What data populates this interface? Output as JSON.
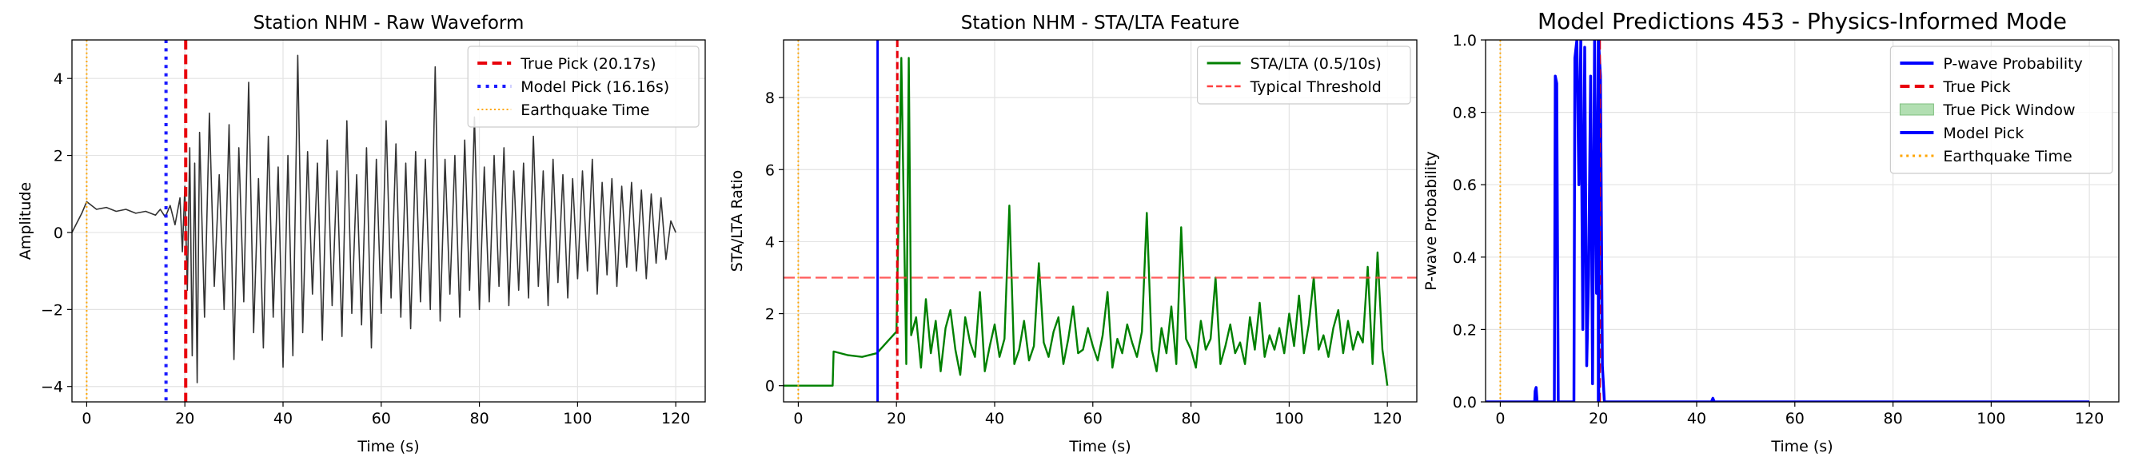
{
  "chart_data": [
    {
      "type": "line",
      "title": "Station NHM - Raw Waveform",
      "xlabel": "Time (s)",
      "ylabel": "Amplitude",
      "xlim": [
        -3,
        126
      ],
      "ylim": [
        -4.4,
        5.0
      ],
      "xticks": [
        0,
        20,
        40,
        60,
        80,
        100,
        120
      ],
      "yticks": [
        -4,
        -2,
        0,
        2,
        4
      ],
      "grid": true,
      "legend_position": "top-right",
      "series": [
        {
          "name": "Waveform",
          "color": "#333333",
          "x": [
            -3,
            -1,
            0,
            2,
            4,
            6,
            8,
            10,
            12,
            14,
            15,
            16,
            17,
            18,
            19,
            19.5,
            20,
            20.5,
            21,
            21.5,
            22,
            22.5,
            23,
            24,
            25,
            26,
            27,
            28,
            29,
            30,
            31,
            32,
            33,
            34,
            35,
            36,
            37,
            38,
            39,
            40,
            41,
            42,
            43,
            44,
            45,
            46,
            47,
            48,
            49,
            50,
            51,
            52,
            53,
            54,
            55,
            56,
            57,
            58,
            59,
            60,
            61,
            62,
            63,
            64,
            65,
            66,
            67,
            68,
            69,
            70,
            71,
            72,
            73,
            74,
            75,
            76,
            77,
            78,
            79,
            80,
            81,
            82,
            83,
            84,
            85,
            86,
            87,
            88,
            89,
            90,
            91,
            92,
            93,
            94,
            95,
            96,
            97,
            98,
            99,
            100,
            101,
            102,
            103,
            104,
            105,
            106,
            107,
            108,
            109,
            110,
            111,
            112,
            113,
            114,
            115,
            116,
            117,
            118,
            119,
            120
          ],
          "values": [
            0.0,
            0.5,
            0.8,
            0.6,
            0.65,
            0.55,
            0.6,
            0.5,
            0.55,
            0.45,
            0.6,
            0.4,
            0.7,
            0.2,
            0.9,
            -0.5,
            1.2,
            -1.5,
            2.2,
            -3.2,
            1.8,
            -3.9,
            2.6,
            -2.2,
            3.1,
            -1.4,
            1.5,
            -2.0,
            2.8,
            -3.3,
            2.2,
            -1.8,
            3.9,
            -2.6,
            1.4,
            -3.0,
            2.5,
            -2.2,
            1.7,
            -3.5,
            2.0,
            -3.2,
            4.6,
            -2.6,
            2.1,
            -1.6,
            1.8,
            -2.8,
            2.4,
            -1.9,
            1.6,
            -2.7,
            2.9,
            -2.1,
            1.5,
            -2.4,
            2.2,
            -3.0,
            1.9,
            -2.1,
            2.9,
            -1.7,
            2.3,
            -2.2,
            1.8,
            -2.5,
            2.1,
            -1.8,
            1.9,
            -2.0,
            4.3,
            -2.3,
            1.9,
            -1.6,
            2.0,
            -2.2,
            2.4,
            -1.5,
            3.0,
            -2.0,
            1.7,
            -1.8,
            2.0,
            -1.4,
            2.2,
            -1.9,
            1.6,
            -1.5,
            1.8,
            -1.7,
            2.5,
            -1.4,
            1.6,
            -1.9,
            1.9,
            -1.3,
            1.5,
            -1.7,
            1.4,
            -1.2,
            1.6,
            -1.0,
            1.9,
            -1.6,
            1.3,
            -1.1,
            1.4,
            -1.4,
            1.2,
            -0.9,
            1.3,
            -1.0,
            1.1,
            -1.2,
            1.0,
            -0.8,
            0.9,
            -0.7,
            0.3,
            0.0
          ]
        }
      ],
      "vlines": [
        {
          "name": "True Pick (20.17s)",
          "x": 20.17,
          "color": "#e8000b",
          "style": "dashed",
          "width": 4
        },
        {
          "name": "Model Pick (16.16s)",
          "x": 16.16,
          "color": "#1a1aff",
          "style": "dotted",
          "width": 4
        },
        {
          "name": "Earthquake Time",
          "x": 0,
          "color": "#ffa500",
          "style": "dotted",
          "width": 2
        }
      ]
    },
    {
      "type": "line",
      "title": "Station NHM - STA/LTA Feature",
      "xlabel": "Time (s)",
      "ylabel": "STA/LTA Ratio",
      "xlim": [
        -3,
        126
      ],
      "ylim": [
        -0.45,
        9.6
      ],
      "xticks": [
        0,
        20,
        40,
        60,
        80,
        100,
        120
      ],
      "yticks": [
        0,
        2,
        4,
        6,
        8
      ],
      "grid": true,
      "legend_position": "top-right",
      "series": [
        {
          "name": "STA/LTA (0.5/10s)",
          "color": "#008000",
          "x": [
            -3,
            7,
            7.2,
            10,
            13,
            16,
            18,
            20,
            21,
            22,
            22.5,
            23,
            24,
            25,
            26,
            27,
            28,
            29,
            30,
            31,
            32,
            33,
            34,
            35,
            36,
            37,
            38,
            39,
            40,
            41,
            42,
            43,
            44,
            45,
            46,
            47,
            48,
            49,
            50,
            51,
            52,
            53,
            54,
            55,
            56,
            57,
            58,
            59,
            60,
            61,
            62,
            63,
            64,
            65,
            66,
            67,
            68,
            69,
            70,
            71,
            72,
            73,
            74,
            75,
            76,
            77,
            78,
            79,
            80,
            81,
            82,
            83,
            84,
            85,
            86,
            87,
            88,
            89,
            90,
            91,
            92,
            93,
            94,
            95,
            96,
            97,
            98,
            99,
            100,
            101,
            102,
            103,
            104,
            105,
            106,
            107,
            108,
            109,
            110,
            111,
            112,
            113,
            114,
            115,
            116,
            117,
            118,
            119,
            120
          ],
          "values": [
            0,
            0,
            0.95,
            0.85,
            0.8,
            0.9,
            1.2,
            1.5,
            9.1,
            0.6,
            9.1,
            1.4,
            1.9,
            0.5,
            2.4,
            0.9,
            1.8,
            0.4,
            1.6,
            2.1,
            1.0,
            0.3,
            1.9,
            1.2,
            0.8,
            2.6,
            0.4,
            1.1,
            1.7,
            0.8,
            1.3,
            5.0,
            0.6,
            1.0,
            1.8,
            0.7,
            1.1,
            3.4,
            1.2,
            0.8,
            1.5,
            1.9,
            0.6,
            1.3,
            2.2,
            0.9,
            1.0,
            1.6,
            1.1,
            0.7,
            1.4,
            2.6,
            0.5,
            1.3,
            0.9,
            1.7,
            1.2,
            0.8,
            1.5,
            4.8,
            1.0,
            0.4,
            1.6,
            0.9,
            2.2,
            0.6,
            4.4,
            1.3,
            1.0,
            0.5,
            1.8,
            1.0,
            1.3,
            3.0,
            0.6,
            1.1,
            1.7,
            0.9,
            1.2,
            0.6,
            1.9,
            1.0,
            2.3,
            0.8,
            1.4,
            1.0,
            1.6,
            0.9,
            2.0,
            1.1,
            2.5,
            0.9,
            1.7,
            3.0,
            1.0,
            1.4,
            0.8,
            1.6,
            2.1,
            0.9,
            1.8,
            1.0,
            1.5,
            1.2,
            3.3,
            0.6,
            3.7,
            1.0,
            0.0
          ]
        },
        {
          "name": "Typical Threshold",
          "color": "#ff4040",
          "style": "dashed",
          "x": [
            -3,
            126
          ],
          "values": [
            3,
            3
          ]
        }
      ],
      "vlines": [
        {
          "x": 16.16,
          "color": "#0000ff",
          "style": "solid",
          "width": 3
        },
        {
          "x": 20.17,
          "color": "#e8000b",
          "style": "dashed",
          "width": 3
        },
        {
          "x": 0,
          "color": "#ffa500",
          "style": "dotted",
          "width": 2
        }
      ]
    },
    {
      "type": "line",
      "title": "Model Predictions 453 - Physics-Informed Mode",
      "xlabel": "Time (s)",
      "ylabel": "P-wave Probability",
      "xlim": [
        -3,
        126
      ],
      "ylim": [
        0,
        1.0
      ],
      "xticks": [
        0,
        20,
        40,
        60,
        80,
        100,
        120
      ],
      "yticks": [
        0.0,
        0.2,
        0.4,
        0.6,
        0.8,
        1.0
      ],
      "grid": true,
      "legend_position": "top-right",
      "series": [
        {
          "name": "P-wave Probability",
          "color": "#0000ff",
          "x": [
            -3,
            7,
            7.1,
            7.3,
            7.5,
            11,
            11.2,
            11.5,
            11.8,
            15,
            15.2,
            15.6,
            16,
            16.4,
            16.8,
            17.2,
            17.6,
            18,
            18.4,
            18.8,
            19.2,
            19.6,
            20,
            20.4,
            20.8,
            21.2,
            30,
            43,
            43.3,
            43.6,
            60,
            120
          ],
          "values": [
            0,
            0,
            0.03,
            0.04,
            0,
            0,
            0.9,
            0.88,
            0,
            0,
            0.95,
            1.0,
            0.6,
            1.0,
            0.2,
            0.98,
            0.1,
            0.35,
            0.9,
            0.05,
            1.0,
            0.3,
            1.0,
            0.9,
            0.1,
            0,
            0,
            0,
            0.01,
            0,
            0,
            0
          ]
        }
      ],
      "vlines": [
        {
          "name": "True Pick",
          "x": 20.17,
          "color": "#e8000b",
          "style": "dashed",
          "width": 4
        },
        {
          "name": "Model Pick",
          "x": 20.0,
          "color": "#0000ff",
          "style": "solid",
          "width": 4
        },
        {
          "name": "Earthquake Time",
          "x": 0,
          "color": "#ffa500",
          "style": "dotted",
          "width": 2
        }
      ],
      "vspan": {
        "name": "True Pick Window",
        "x0": 19.9,
        "x1": 20.4,
        "color": "#b2dfb2"
      },
      "legend_order": [
        "P-wave Probability",
        "True Pick",
        "True Pick Window",
        "Model Pick",
        "Earthquake Time"
      ]
    }
  ]
}
